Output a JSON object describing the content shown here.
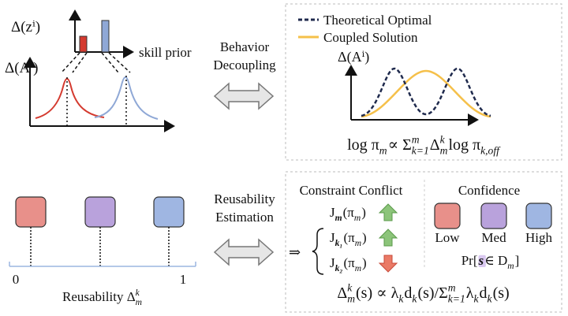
{
  "top_left": {
    "y_label_prior": "Δ(zⁱ)",
    "x_label_prior": "skill prior",
    "y_label_advantage": "Δ(Aⁱ)",
    "colors": [
      "#d43a2f",
      "#8fa8d6"
    ]
  },
  "behavior_decoupling": {
    "label_lines": [
      "Behavior",
      "Decoupling"
    ]
  },
  "top_right": {
    "legend": [
      {
        "name": "Theoretical Optimal",
        "color": "#1f2a4d",
        "style": "dashed"
      },
      {
        "name": "Coupled Solution",
        "color": "#f5c04a",
        "style": "solid"
      }
    ],
    "y_label": "Δ(Aⁱ)",
    "formula": [
      {
        "t": "log π",
        "sub": "m"
      },
      {
        "t": " ∝ Σ",
        "sup": "m",
        "sub": "k=1"
      },
      {
        "t": "Δ",
        "sup": "k",
        "sub": "m"
      },
      {
        "t": " log π",
        "sub": "k,off"
      }
    ]
  },
  "bottom_left": {
    "colors": [
      "#e8908a",
      "#b9a2dc",
      "#9fb6e2"
    ],
    "axis_start": "0",
    "axis_end": "1",
    "axis_label": [
      {
        "t": "Reusability Δ",
        "sup": "k",
        "sub": "m"
      }
    ]
  },
  "reusability_estimation": {
    "label_lines": [
      "Reusability",
      "Estimation"
    ]
  },
  "bottom_right": {
    "conflict_title": "Constraint Conflict",
    "implies": "⇒",
    "objectives": [
      {
        "formula": [
          {
            "t": "J",
            "sub": "m",
            "sub_color": "#3b5fd0"
          },
          {
            "t": "(π",
            "sub": "m"
          },
          {
            "t": ")"
          }
        ],
        "trend": "up"
      },
      {
        "formula": [
          {
            "t": "J",
            "sub": "k₁",
            "sub_color": "#6a3fa8"
          },
          {
            "t": "(π",
            "sub": "m"
          },
          {
            "t": ")"
          }
        ],
        "trend": "up"
      },
      {
        "formula": [
          {
            "t": "J",
            "sub": "k₂",
            "sub_color": "#c8322a"
          },
          {
            "t": "(π",
            "sub": "m"
          },
          {
            "t": ")"
          }
        ],
        "trend": "down"
      }
    ],
    "confidence_title": "Confidence",
    "levels": [
      {
        "name": "Low",
        "color": "#e8908a"
      },
      {
        "name": "Med",
        "color": "#b9a2dc"
      },
      {
        "name": "High",
        "color": "#9fb6e2"
      }
    ],
    "membership": [
      {
        "t": "Pr["
      },
      {
        "t": "s",
        "color": "#7a4fc0",
        "highlight": "#d9c8f0"
      },
      {
        "t": " ∈ D",
        "sub": "m"
      },
      {
        "t": "]"
      }
    ],
    "formula": [
      {
        "t": "Δ",
        "sup": "k",
        "sub": "m"
      },
      {
        "t": "(s) ∝ λ",
        "sub": "k"
      },
      {
        "t": "d",
        "sub": "k"
      },
      {
        "t": "(s)/Σ",
        "sup": "m",
        "sub": "k=1"
      },
      {
        "t": "λ",
        "sub": "k"
      },
      {
        "t": "d",
        "sub": "k"
      },
      {
        "t": "(s)"
      }
    ]
  }
}
